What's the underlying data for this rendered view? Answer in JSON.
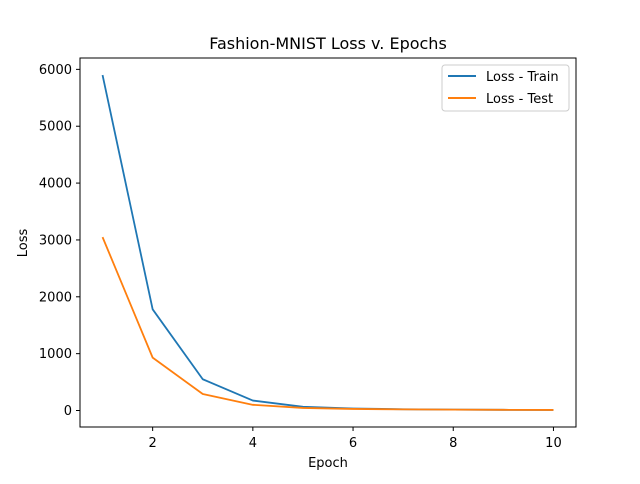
{
  "chart_data": {
    "type": "line",
    "title": "Fashion-MNIST Loss v. Epochs",
    "xlabel": "Epoch",
    "ylabel": "Loss",
    "xlim": [
      0.55,
      10.45
    ],
    "ylim": [
      -290,
      6200
    ],
    "x_ticks": [
      2,
      4,
      6,
      8,
      10
    ],
    "y_ticks": [
      0,
      1000,
      2000,
      3000,
      4000,
      5000,
      6000
    ],
    "grid": false,
    "legend_position": "top-right",
    "x": [
      1,
      2,
      3,
      4,
      5,
      6,
      7,
      8,
      9,
      10
    ],
    "series": [
      {
        "name": "Loss - Train",
        "color": "#1f77b4",
        "values": [
          5900,
          1780,
          550,
          175,
          65,
          35,
          22,
          15,
          12,
          10
        ]
      },
      {
        "name": "Loss - Test",
        "color": "#ff7f0e",
        "values": [
          3050,
          930,
          290,
          100,
          45,
          28,
          20,
          15,
          12,
          10
        ]
      }
    ]
  }
}
